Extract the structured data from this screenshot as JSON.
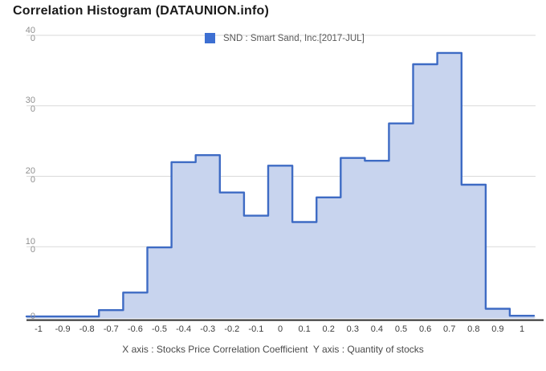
{
  "header": {
    "title": "Correlation Histogram (DATAUNION.info)"
  },
  "legend": {
    "label": "SND : Smart Sand, Inc.[2017-JUL]",
    "swatch_color": "#3d6fd2"
  },
  "footer": {
    "caption": "X axis : Stocks Price Correlation Coefficient  Y axis : Quantity of stocks"
  },
  "chart_data": {
    "type": "area",
    "subtype": "step-histogram",
    "title": "Correlation Histogram (DATAUNION.info)",
    "series": [
      {
        "name": "SND : Smart Sand, Inc.[2017-JUL]",
        "x": [
          -1.0,
          -0.9,
          -0.8,
          -0.7,
          -0.6,
          -0.5,
          -0.4,
          -0.3,
          -0.2,
          -0.1,
          0.0,
          0.1,
          0.2,
          0.3,
          0.4,
          0.5,
          0.6,
          0.7,
          0.8,
          0.9,
          1.0
        ],
        "values": [
          1,
          1,
          1,
          10,
          35,
          99,
          220,
          230,
          177,
          144,
          215,
          135,
          170,
          226,
          222,
          275,
          359,
          375,
          188,
          12,
          2
        ]
      }
    ],
    "bin_width": 0.1,
    "xlabel": "Stocks Price Correlation Coefficient",
    "ylabel": "Quantity of stocks",
    "xlim": [
      -1.05,
      1.05
    ],
    "ylim": [
      0,
      400
    ],
    "yticks": [
      400,
      300,
      200,
      100,
      0
    ],
    "ytick_labels": [
      "400",
      "300",
      "200",
      "100",
      "0"
    ],
    "xtick_labels": [
      "-1",
      "-0.9",
      "-0.8",
      "-0.7",
      "-0.6",
      "-0.5",
      "-0.4",
      "-0.3",
      "-0.2",
      "-0.1",
      "0",
      "0.1",
      "0.2",
      "0.3",
      "0.4",
      "0.5",
      "0.6",
      "0.7",
      "0.8",
      "0.9",
      "1"
    ],
    "grid": true,
    "legend_position": "top-center",
    "colors": {
      "line": "#3e6bc4",
      "fill": "#c8d4ee",
      "grid": "#d9d9d9",
      "axis_line": "#2e2e2e"
    }
  }
}
